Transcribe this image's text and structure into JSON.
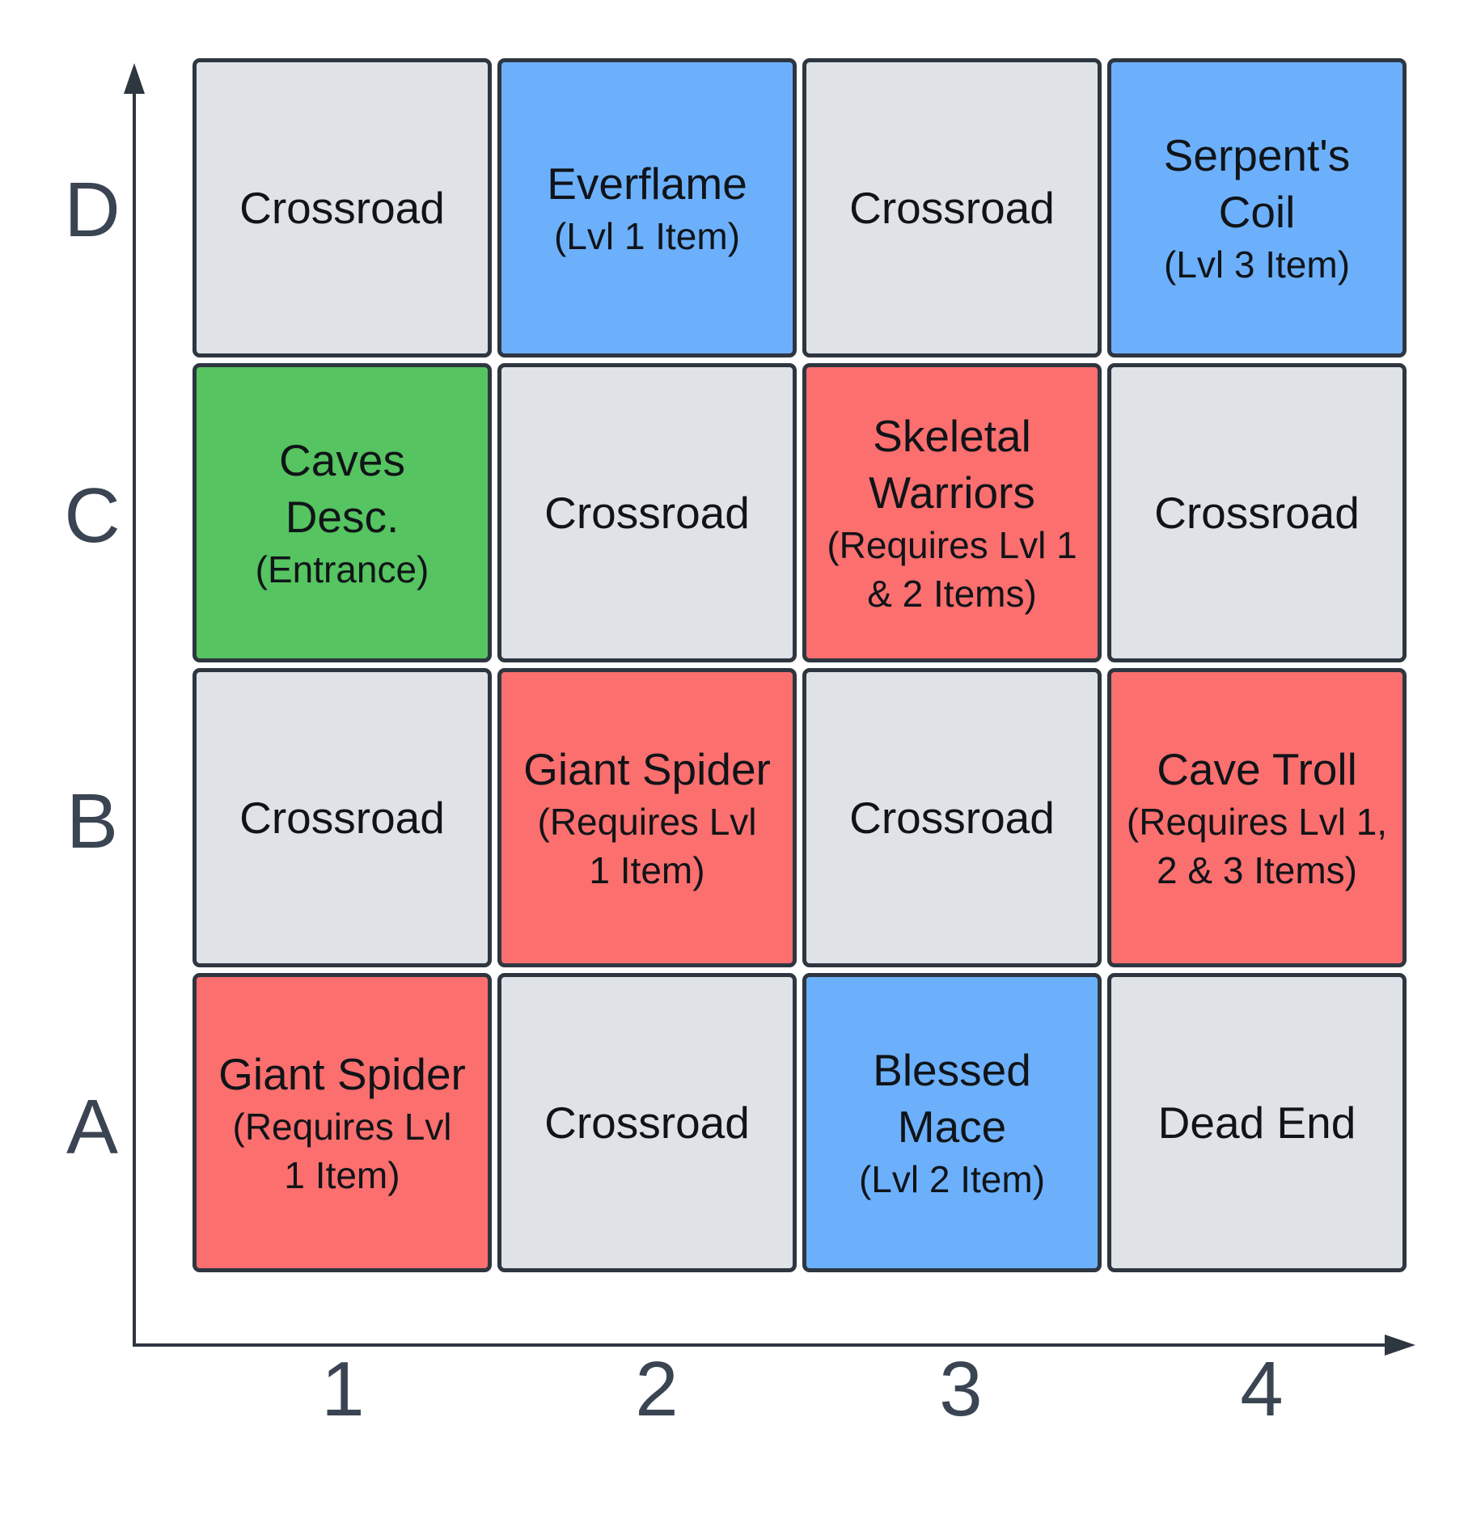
{
  "rows": [
    "D",
    "C",
    "B",
    "A"
  ],
  "columns": [
    "1",
    "2",
    "3",
    "4"
  ],
  "colors": {
    "gray": "#dfe2e7",
    "blue": "#6cb0fc",
    "red": "#fb6f6e",
    "green": "#56c460",
    "axis": "#2e3640"
  },
  "cells": {
    "D1": {
      "title": "Crossroad",
      "sub": "",
      "color": "gray"
    },
    "D2": {
      "title": "Everflame",
      "sub": "(Lvl 1 Item)",
      "color": "blue"
    },
    "D3": {
      "title": "Crossroad",
      "sub": "",
      "color": "gray"
    },
    "D4": {
      "title": "Serpent's Coil",
      "sub": "(Lvl 3 Item)",
      "color": "blue"
    },
    "C1": {
      "title": "Caves Desc.",
      "sub": "(Entrance)",
      "color": "green"
    },
    "C2": {
      "title": "Crossroad",
      "sub": "",
      "color": "gray"
    },
    "C3": {
      "title": "Skeletal Warriors",
      "sub": "(Requires Lvl 1 & 2 Items)",
      "color": "red"
    },
    "C4": {
      "title": "Crossroad",
      "sub": "",
      "color": "gray"
    },
    "B1": {
      "title": "Crossroad",
      "sub": "",
      "color": "gray"
    },
    "B2": {
      "title": "Giant Spider",
      "sub": "(Requires Lvl 1 Item)",
      "color": "red"
    },
    "B3": {
      "title": "Crossroad",
      "sub": "",
      "color": "gray"
    },
    "B4": {
      "title": "Cave Troll",
      "sub": "(Requires Lvl 1, 2 & 3 Items)",
      "color": "red"
    },
    "A1": {
      "title": "Giant Spider",
      "sub": "(Requires Lvl 1 Item)",
      "color": "red"
    },
    "A2": {
      "title": "Crossroad",
      "sub": "",
      "color": "gray"
    },
    "A3": {
      "title": "Blessed Mace",
      "sub": "(Lvl 2 Item)",
      "color": "blue"
    },
    "A4": {
      "title": "Dead End",
      "sub": "",
      "color": "gray"
    }
  }
}
